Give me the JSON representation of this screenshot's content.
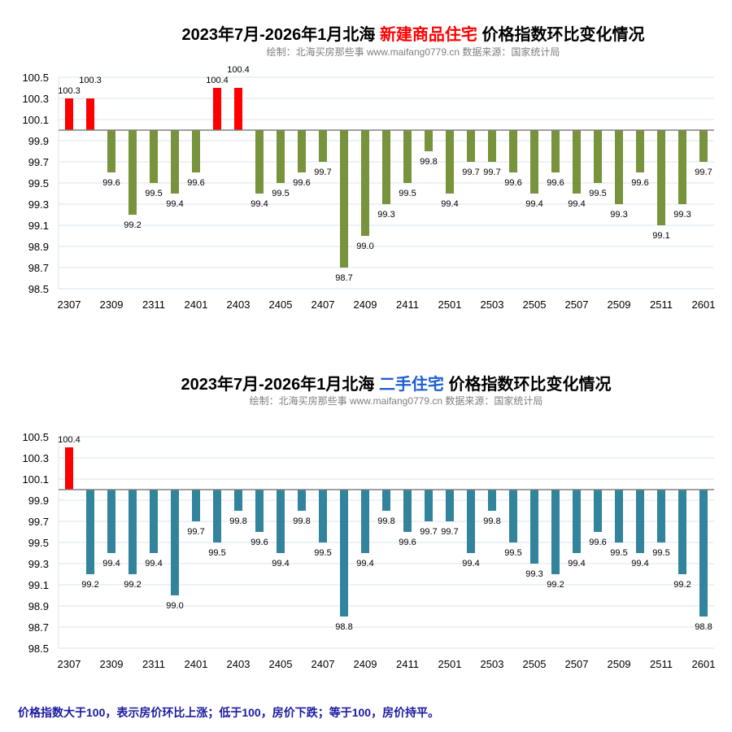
{
  "chart_data": [
    {
      "type": "bar",
      "title_prefix": "2023年7月-2026年1月北海 ",
      "title_highlight": "新建商品住宅",
      "title_suffix": " 价格指数环比变化情况",
      "subtitle": "绘制：北海买房那些事  www.maifang0779.cn    数据来源：国家统计局",
      "highlight_color": "#ff0000",
      "up_color": "#ff0000",
      "down_color": "#77933c",
      "baseline": 100,
      "ylim": [
        98.5,
        100.5
      ],
      "yticks": [
        "100.5",
        "100.3",
        "100.1",
        "99.9",
        "99.7",
        "99.5",
        "99.3",
        "99.1",
        "98.9",
        "98.7",
        "98.5"
      ],
      "categories": [
        "2307",
        "2308",
        "2309",
        "2310",
        "2311",
        "2312",
        "2401",
        "2402",
        "2403",
        "2404",
        "2405",
        "2406",
        "2407",
        "2408",
        "2409",
        "2410",
        "2411",
        "2412",
        "2501",
        "2502",
        "2503",
        "2504",
        "2505",
        "2506",
        "2507",
        "2508",
        "2509",
        "2510",
        "2511",
        "2512",
        "2601"
      ],
      "xtick_labels": [
        "2307",
        "2309",
        "2311",
        "2401",
        "2403",
        "2405",
        "2407",
        "2409",
        "2411",
        "2501",
        "2503",
        "2505",
        "2507",
        "2509",
        "2511",
        "2601"
      ],
      "values": [
        100.3,
        100.3,
        99.6,
        99.2,
        99.5,
        99.4,
        99.6,
        100.4,
        100.4,
        99.4,
        99.5,
        99.6,
        99.7,
        98.7,
        99.0,
        99.3,
        99.5,
        99.8,
        99.4,
        99.7,
        99.7,
        99.6,
        99.4,
        99.6,
        99.4,
        99.5,
        99.3,
        99.6,
        99.1,
        99.3,
        99.7
      ]
    },
    {
      "type": "bar",
      "title_prefix": "2023年7月-2026年1月北海 ",
      "title_highlight": "二手住宅",
      "title_suffix": " 价格指数环比变化情况",
      "subtitle": "绘制：北海买房那些事  www.maifang0779.cn    数据来源：国家统计局",
      "highlight_color": "#1f5fd0",
      "up_color": "#ff0000",
      "down_color": "#31849b",
      "baseline": 100,
      "ylim": [
        98.5,
        100.5
      ],
      "yticks": [
        "100.5",
        "100.3",
        "100.1",
        "99.9",
        "99.7",
        "99.5",
        "99.3",
        "99.1",
        "98.9",
        "98.7",
        "98.5"
      ],
      "categories": [
        "2307",
        "2308",
        "2309",
        "2310",
        "2311",
        "2312",
        "2401",
        "2402",
        "2403",
        "2404",
        "2405",
        "2406",
        "2407",
        "2408",
        "2409",
        "2410",
        "2411",
        "2412",
        "2501",
        "2502",
        "2503",
        "2504",
        "2505",
        "2506",
        "2507",
        "2508",
        "2509",
        "2510",
        "2511",
        "2512",
        "2601"
      ],
      "xtick_labels": [
        "2307",
        "2309",
        "2311",
        "2401",
        "2403",
        "2405",
        "2407",
        "2409",
        "2411",
        "2501",
        "2503",
        "2505",
        "2507",
        "2509",
        "2511",
        "2601"
      ],
      "values": [
        100.4,
        99.2,
        99.4,
        99.2,
        99.4,
        99.0,
        99.7,
        99.5,
        99.8,
        99.6,
        99.4,
        99.8,
        99.5,
        98.8,
        99.4,
        99.8,
        99.6,
        99.7,
        99.7,
        99.4,
        99.8,
        99.5,
        99.3,
        99.2,
        99.4,
        99.6,
        99.5,
        99.4,
        99.5,
        99.2,
        98.8
      ]
    }
  ],
  "watermark": {
    "line1": "北海买房那些事",
    "line2": "maifang0779.cn"
  },
  "footer": "价格指数大于100，表示房价环比上涨；低于100，房价下跌；等于100，房价持平。"
}
